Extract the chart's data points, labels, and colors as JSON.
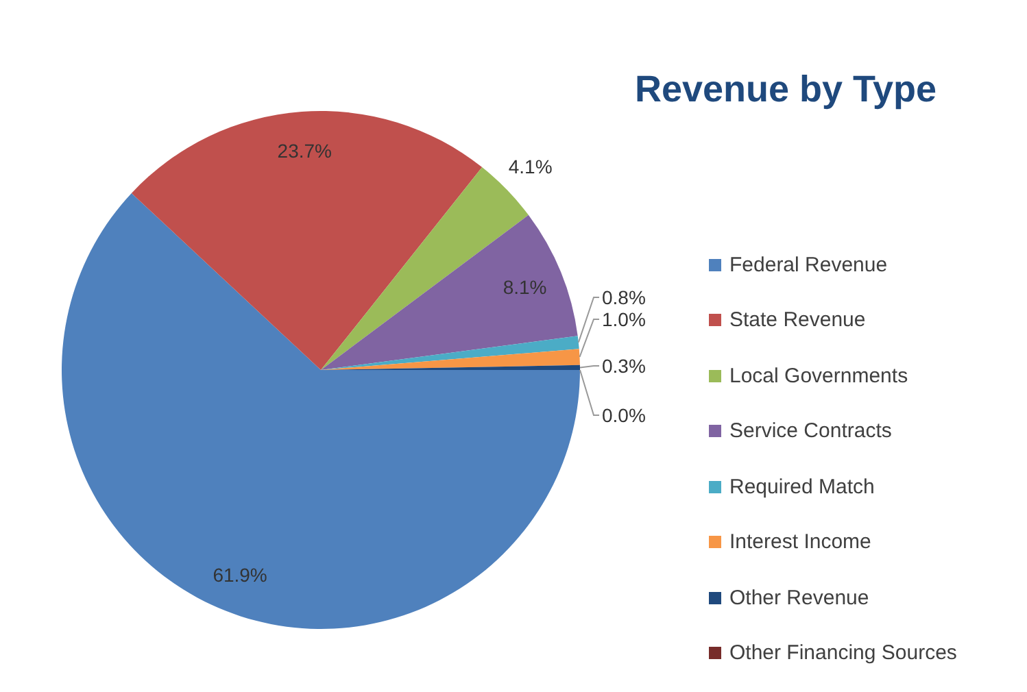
{
  "chart_data": {
    "type": "pie",
    "title": "Revenue by Type",
    "categories": [
      "Federal Revenue",
      "State Revenue",
      "Local Governments",
      "Service Contracts",
      "Required Match",
      "Interest Income",
      "Other Revenue",
      "Other Financing Sources"
    ],
    "values": [
      61.9,
      23.7,
      4.1,
      8.1,
      0.8,
      1.0,
      0.3,
      0.0
    ],
    "colors": [
      "#4f81bd",
      "#c0504d",
      "#9bbb59",
      "#8064a2",
      "#4bacc6",
      "#f79646",
      "#1f497d",
      "#772c2a"
    ],
    "value_labels": [
      "61.9%",
      "23.7%",
      "4.1%",
      "8.1%",
      "0.8%",
      "1.0%",
      "0.3%",
      "0.0%"
    ],
    "legend": "right"
  }
}
